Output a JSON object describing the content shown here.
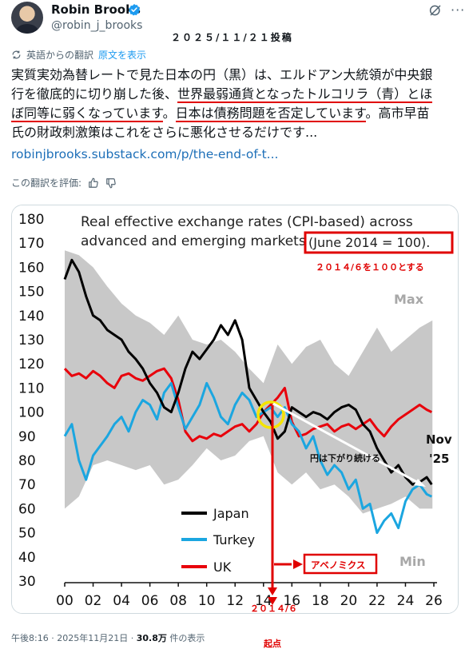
{
  "header": {
    "author_name": "Robin Brooks",
    "author_handle": "@robin_j_brooks",
    "post_date_note": "２０２５/１１/２１投稿"
  },
  "translation": {
    "label": "英語からの翻訳",
    "show_original": "原文を表示"
  },
  "tweet": {
    "lines": [
      "実質実効為替レートで見た日本の円（黒）は、エルドアン大統領が中央銀",
      "行を徹底的に切り崩した後、世界最弱通貨となったトルコリラ（青）とほ",
      "ぼ同等に弱くなっています。日本は債務問題を否定しています。高市早苗",
      "氏の財政刺激策はこれをさらに悪化させるだけです..."
    ],
    "line2_plain": "行を徹底的に切り崩した後、",
    "line2_underlined": "世界最弱通貨となったトルコリラ（青）とほ",
    "line3_underlined_a": "ぼ同等に弱くなっています",
    "line3_plain_a": "。",
    "line3_underlined_b": "日本は債務問題を否定しています",
    "line3_plain_b": "。高市早苗",
    "link": "robinjbrooks.substack.com/p/the-end-of-t..."
  },
  "rate_translation": {
    "label": "この翻訳を評価:"
  },
  "meta": {
    "time": "午後8:16",
    "date": "2025年11月21日",
    "views_count": "30.8万",
    "views_label": "件の表示"
  },
  "colors": {
    "japan": "#000000",
    "turkey": "#1ba6e0",
    "uk": "#e8000b",
    "band": "#c8c8c8",
    "annotation": "#e00000",
    "verified": "#1d9bf0"
  },
  "icons": [
    "verified-icon",
    "grok-icon",
    "more-icon",
    "translate-icon",
    "thumbs-up-icon",
    "thumbs-down-icon"
  ],
  "chart_data": {
    "type": "line",
    "title_line1": "Real effective exchange rates (CPI-based) across",
    "title_line2": "advanced and emerging markets",
    "title_boxed": "(June 2014 = 100).",
    "ylim": [
      30,
      180
    ],
    "yticks": [
      30,
      40,
      50,
      60,
      70,
      80,
      90,
      100,
      110,
      120,
      130,
      140,
      150,
      160,
      170,
      180
    ],
    "xlim": [
      2000,
      2026
    ],
    "xticks": [
      2000,
      2002,
      2004,
      2006,
      2008,
      2010,
      2012,
      2014,
      2016,
      2018,
      2020,
      2022,
      2024,
      2026
    ],
    "xtick_labels": [
      "00",
      "02",
      "04",
      "06",
      "08",
      "10",
      "12",
      "14",
      "16",
      "18",
      "20",
      "22",
      "24",
      "26"
    ],
    "band_label_max": "Max",
    "band_label_min": "Min",
    "end_label_line1": "Nov",
    "end_label_line2": "'25",
    "legend": [
      "Japan",
      "Turkey",
      "UK"
    ],
    "band": {
      "x": [
        2000,
        2001,
        2002,
        2003,
        2004,
        2005,
        2006,
        2007,
        2008,
        2009,
        2010,
        2011,
        2012,
        2013,
        2014,
        2015,
        2016,
        2017,
        2018,
        2019,
        2020,
        2021,
        2022,
        2023,
        2024,
        2025,
        2025.9
      ],
      "upper": [
        167,
        165,
        160,
        152,
        145,
        140,
        137,
        132,
        140,
        130,
        128,
        130,
        125,
        118,
        112,
        128,
        120,
        127,
        130,
        120,
        115,
        125,
        135,
        125,
        130,
        135,
        138
      ],
      "lower": [
        60,
        65,
        78,
        80,
        78,
        76,
        78,
        70,
        72,
        78,
        85,
        80,
        82,
        88,
        90,
        75,
        70,
        75,
        68,
        70,
        65,
        58,
        60,
        62,
        65,
        60,
        60
      ]
    },
    "series": [
      {
        "name": "Japan",
        "x": [
          2000,
          2000.5,
          2001,
          2001.5,
          2002,
          2002.5,
          2003,
          2003.5,
          2004,
          2004.5,
          2005,
          2005.5,
          2006,
          2006.5,
          2007,
          2007.5,
          2008,
          2008.5,
          2009,
          2009.5,
          2010,
          2010.5,
          2011,
          2011.5,
          2012,
          2012.5,
          2013,
          2013.5,
          2014,
          2014.5,
          2015,
          2015.5,
          2016,
          2016.5,
          2017,
          2017.5,
          2018,
          2018.5,
          2019,
          2019.5,
          2020,
          2020.5,
          2021,
          2021.5,
          2022,
          2022.5,
          2023,
          2023.5,
          2024,
          2024.5,
          2025,
          2025.5,
          2025.85
        ],
        "values": [
          155,
          163,
          158,
          148,
          140,
          138,
          134,
          132,
          130,
          125,
          122,
          118,
          112,
          108,
          102,
          100,
          108,
          118,
          125,
          122,
          126,
          130,
          136,
          132,
          138,
          130,
          110,
          105,
          100,
          96,
          89,
          92,
          102,
          100,
          98,
          100,
          99,
          97,
          100,
          102,
          103,
          101,
          95,
          92,
          85,
          80,
          75,
          78,
          73,
          70,
          71,
          73,
          70
        ]
      },
      {
        "name": "Turkey",
        "x": [
          2000,
          2000.5,
          2001,
          2001.5,
          2002,
          2002.5,
          2003,
          2003.5,
          2004,
          2004.5,
          2005,
          2005.5,
          2006,
          2006.5,
          2007,
          2007.5,
          2008,
          2008.5,
          2009,
          2009.5,
          2010,
          2010.5,
          2011,
          2011.5,
          2012,
          2012.5,
          2013,
          2013.5,
          2014,
          2014.5,
          2015,
          2015.5,
          2016,
          2016.5,
          2017,
          2017.5,
          2018,
          2018.5,
          2019,
          2019.5,
          2020,
          2020.5,
          2021,
          2021.5,
          2022,
          2022.5,
          2023,
          2023.5,
          2024,
          2024.5,
          2025,
          2025.5,
          2025.85
        ],
        "values": [
          90,
          95,
          80,
          72,
          82,
          86,
          90,
          95,
          98,
          92,
          100,
          105,
          103,
          97,
          108,
          112,
          102,
          93,
          98,
          103,
          112,
          106,
          98,
          95,
          103,
          108,
          105,
          98,
          100,
          102,
          98,
          102,
          95,
          92,
          85,
          90,
          80,
          74,
          78,
          75,
          68,
          72,
          60,
          62,
          50,
          55,
          58,
          52,
          63,
          68,
          70,
          66,
          65
        ]
      },
      {
        "name": "UK",
        "x": [
          2000,
          2000.5,
          2001,
          2001.5,
          2002,
          2002.5,
          2003,
          2003.5,
          2004,
          2004.5,
          2005,
          2005.5,
          2006,
          2006.5,
          2007,
          2007.5,
          2008,
          2008.5,
          2009,
          2009.5,
          2010,
          2010.5,
          2011,
          2011.5,
          2012,
          2012.5,
          2013,
          2013.5,
          2014,
          2014.5,
          2015,
          2015.5,
          2016,
          2016.5,
          2017,
          2017.5,
          2018,
          2018.5,
          2019,
          2019.5,
          2020,
          2020.5,
          2021,
          2021.5,
          2022,
          2022.5,
          2023,
          2023.5,
          2024,
          2024.5,
          2025,
          2025.5,
          2025.85
        ],
        "values": [
          118,
          115,
          116,
          114,
          117,
          115,
          112,
          110,
          115,
          116,
          114,
          113,
          115,
          117,
          118,
          114,
          105,
          92,
          88,
          90,
          89,
          91,
          90,
          92,
          94,
          95,
          92,
          95,
          100,
          103,
          106,
          110,
          96,
          90,
          91,
          93,
          94,
          95,
          92,
          94,
          95,
          93,
          95,
          97,
          93,
          90,
          94,
          97,
          99,
          101,
          103,
          101,
          100
        ]
      }
    ],
    "annotations": {
      "base_note": "２０１４/６を１００とする",
      "yen_note": "円は下がり続ける",
      "abenomics": "アベノミクス",
      "start_year": "２０１４/６",
      "start_label": "起点"
    }
  }
}
